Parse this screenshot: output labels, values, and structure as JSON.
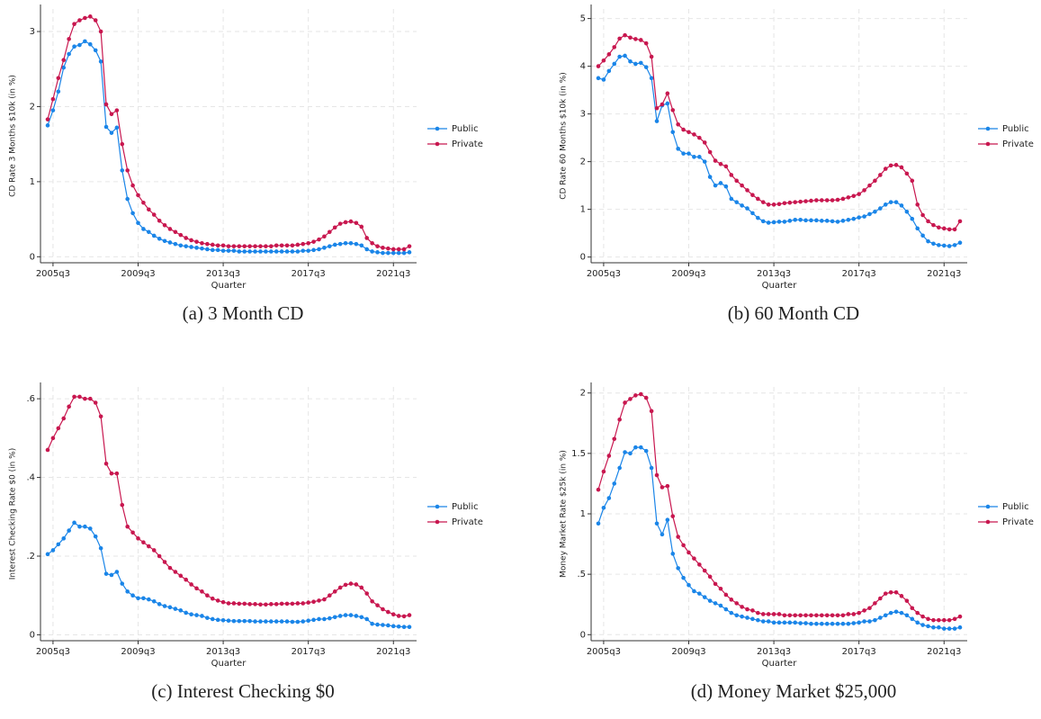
{
  "chart_data": [
    {
      "type": "line",
      "caption": "(a) 3 Month CD",
      "ylabel": "CD Rate 3 Months $10k (in %)",
      "xlabel": "Quarter",
      "x": [
        "2005q2",
        "2005q3",
        "2005q4",
        "2006q1",
        "2006q2",
        "2006q3",
        "2006q4",
        "2007q1",
        "2007q2",
        "2007q3",
        "2007q4",
        "2008q1",
        "2008q2",
        "2008q3",
        "2008q4",
        "2009q1",
        "2009q2",
        "2009q3",
        "2009q4",
        "2010q1",
        "2010q2",
        "2010q3",
        "2010q4",
        "2011q1",
        "2011q2",
        "2011q3",
        "2011q4",
        "2012q1",
        "2012q2",
        "2012q3",
        "2012q4",
        "2013q1",
        "2013q2",
        "2013q3",
        "2013q4",
        "2014q1",
        "2014q2",
        "2014q3",
        "2014q4",
        "2015q1",
        "2015q2",
        "2015q3",
        "2015q4",
        "2016q1",
        "2016q2",
        "2016q3",
        "2016q4",
        "2017q1",
        "2017q2",
        "2017q3",
        "2017q4",
        "2018q1",
        "2018q2",
        "2018q3",
        "2018q4",
        "2019q1",
        "2019q2",
        "2019q3",
        "2019q4",
        "2020q1",
        "2020q2",
        "2020q3",
        "2020q4",
        "2021q1",
        "2021q2",
        "2021q3",
        "2021q4",
        "2022q1",
        "2022q2"
      ],
      "xticks": [
        "2005q3",
        "2009q3",
        "2013q3",
        "2017q3",
        "2021q3"
      ],
      "ylim": [
        -0.08,
        3.3
      ],
      "yticks": [
        0,
        1,
        2,
        3
      ],
      "grid": true,
      "series": [
        {
          "name": "Public",
          "color": "#1a85e8",
          "values": [
            1.75,
            1.95,
            2.2,
            2.52,
            2.7,
            2.8,
            2.82,
            2.87,
            2.83,
            2.75,
            2.6,
            1.73,
            1.65,
            1.72,
            1.15,
            0.77,
            0.58,
            0.45,
            0.37,
            0.33,
            0.28,
            0.24,
            0.21,
            0.19,
            0.17,
            0.15,
            0.14,
            0.13,
            0.12,
            0.11,
            0.1,
            0.09,
            0.09,
            0.08,
            0.08,
            0.08,
            0.07,
            0.07,
            0.07,
            0.07,
            0.07,
            0.07,
            0.07,
            0.07,
            0.07,
            0.07,
            0.07,
            0.07,
            0.08,
            0.08,
            0.09,
            0.1,
            0.12,
            0.14,
            0.16,
            0.17,
            0.18,
            0.18,
            0.17,
            0.15,
            0.1,
            0.07,
            0.06,
            0.05,
            0.05,
            0.05,
            0.05,
            0.05,
            0.06
          ]
        },
        {
          "name": "Private",
          "color": "#c8174f",
          "values": [
            1.83,
            2.1,
            2.38,
            2.62,
            2.9,
            3.1,
            3.15,
            3.18,
            3.2,
            3.15,
            3.0,
            2.03,
            1.9,
            1.95,
            1.5,
            1.15,
            0.95,
            0.82,
            0.72,
            0.63,
            0.56,
            0.48,
            0.42,
            0.37,
            0.33,
            0.29,
            0.25,
            0.22,
            0.2,
            0.18,
            0.17,
            0.16,
            0.15,
            0.15,
            0.14,
            0.14,
            0.14,
            0.14,
            0.14,
            0.14,
            0.14,
            0.14,
            0.14,
            0.15,
            0.15,
            0.15,
            0.15,
            0.16,
            0.17,
            0.18,
            0.2,
            0.23,
            0.27,
            0.33,
            0.39,
            0.44,
            0.46,
            0.47,
            0.45,
            0.4,
            0.25,
            0.18,
            0.14,
            0.12,
            0.11,
            0.1,
            0.1,
            0.1,
            0.14
          ]
        }
      ]
    },
    {
      "type": "line",
      "caption": "(b) 60 Month CD",
      "ylabel": "CD Rate 60 Months $10k (in %)",
      "xlabel": "Quarter",
      "x": [
        "2005q2",
        "2005q3",
        "2005q4",
        "2006q1",
        "2006q2",
        "2006q3",
        "2006q4",
        "2007q1",
        "2007q2",
        "2007q3",
        "2007q4",
        "2008q1",
        "2008q2",
        "2008q3",
        "2008q4",
        "2009q1",
        "2009q2",
        "2009q3",
        "2009q4",
        "2010q1",
        "2010q2",
        "2010q3",
        "2010q4",
        "2011q1",
        "2011q2",
        "2011q3",
        "2011q4",
        "2012q1",
        "2012q2",
        "2012q3",
        "2012q4",
        "2013q1",
        "2013q2",
        "2013q3",
        "2013q4",
        "2014q1",
        "2014q2",
        "2014q3",
        "2014q4",
        "2015q1",
        "2015q2",
        "2015q3",
        "2015q4",
        "2016q1",
        "2016q2",
        "2016q3",
        "2016q4",
        "2017q1",
        "2017q2",
        "2017q3",
        "2017q4",
        "2018q1",
        "2018q2",
        "2018q3",
        "2018q4",
        "2019q1",
        "2019q2",
        "2019q3",
        "2019q4",
        "2020q1",
        "2020q2",
        "2020q3",
        "2020q4",
        "2021q1",
        "2021q2",
        "2021q3",
        "2021q4",
        "2022q1",
        "2022q2"
      ],
      "xticks": [
        "2005q3",
        "2009q3",
        "2013q3",
        "2017q3",
        "2021q3"
      ],
      "ylim": [
        -0.12,
        5.2
      ],
      "yticks": [
        0,
        1,
        2,
        3,
        4,
        5
      ],
      "grid": true,
      "series": [
        {
          "name": "Public",
          "color": "#1a85e8",
          "values": [
            3.75,
            3.72,
            3.9,
            4.05,
            4.2,
            4.22,
            4.1,
            4.05,
            4.07,
            3.98,
            3.75,
            2.85,
            3.18,
            3.22,
            2.62,
            2.27,
            2.17,
            2.17,
            2.1,
            2.1,
            2.0,
            1.68,
            1.5,
            1.55,
            1.48,
            1.22,
            1.15,
            1.08,
            1.02,
            0.92,
            0.82,
            0.75,
            0.72,
            0.73,
            0.74,
            0.74,
            0.76,
            0.78,
            0.78,
            0.77,
            0.77,
            0.77,
            0.76,
            0.76,
            0.75,
            0.74,
            0.76,
            0.78,
            0.8,
            0.83,
            0.85,
            0.9,
            0.95,
            1.02,
            1.1,
            1.15,
            1.15,
            1.08,
            0.95,
            0.8,
            0.6,
            0.45,
            0.33,
            0.28,
            0.25,
            0.24,
            0.23,
            0.25,
            0.3
          ]
        },
        {
          "name": "Private",
          "color": "#c8174f",
          "values": [
            4.0,
            4.12,
            4.25,
            4.4,
            4.58,
            4.65,
            4.6,
            4.57,
            4.55,
            4.48,
            4.2,
            3.12,
            3.2,
            3.43,
            3.08,
            2.78,
            2.67,
            2.62,
            2.57,
            2.5,
            2.4,
            2.2,
            2.02,
            1.95,
            1.9,
            1.72,
            1.6,
            1.5,
            1.4,
            1.3,
            1.22,
            1.15,
            1.1,
            1.1,
            1.11,
            1.13,
            1.14,
            1.15,
            1.16,
            1.17,
            1.18,
            1.19,
            1.19,
            1.19,
            1.19,
            1.2,
            1.22,
            1.25,
            1.28,
            1.32,
            1.4,
            1.5,
            1.6,
            1.72,
            1.85,
            1.92,
            1.93,
            1.88,
            1.75,
            1.6,
            1.1,
            0.88,
            0.75,
            0.67,
            0.62,
            0.6,
            0.58,
            0.58,
            0.75
          ]
        }
      ]
    },
    {
      "type": "line",
      "caption": "(c) Interest Checking $0",
      "ylabel": "Interest Checking Rate $0 (in %)",
      "xlabel": "Quarter",
      "x": [
        "2005q2",
        "2005q3",
        "2005q4",
        "2006q1",
        "2006q2",
        "2006q3",
        "2006q4",
        "2007q1",
        "2007q2",
        "2007q3",
        "2007q4",
        "2008q1",
        "2008q2",
        "2008q3",
        "2008q4",
        "2009q1",
        "2009q2",
        "2009q3",
        "2009q4",
        "2010q1",
        "2010q2",
        "2010q3",
        "2010q4",
        "2011q1",
        "2011q2",
        "2011q3",
        "2011q4",
        "2012q1",
        "2012q2",
        "2012q3",
        "2012q4",
        "2013q1",
        "2013q2",
        "2013q3",
        "2013q4",
        "2014q1",
        "2014q2",
        "2014q3",
        "2014q4",
        "2015q1",
        "2015q2",
        "2015q3",
        "2015q4",
        "2016q1",
        "2016q2",
        "2016q3",
        "2016q4",
        "2017q1",
        "2017q2",
        "2017q3",
        "2017q4",
        "2018q1",
        "2018q2",
        "2018q3",
        "2018q4",
        "2019q1",
        "2019q2",
        "2019q3",
        "2019q4",
        "2020q1",
        "2020q2",
        "2020q3",
        "2020q4",
        "2021q1",
        "2021q2",
        "2021q3",
        "2021q4",
        "2022q1",
        "2022q2"
      ],
      "xticks": [
        "2005q3",
        "2009q3",
        "2013q3",
        "2017q3",
        "2021q3"
      ],
      "ylim": [
        -0.015,
        0.63
      ],
      "yticks": [
        0,
        {
          "value": 0.2,
          "label": ".2"
        },
        {
          "value": 0.4,
          "label": ".4"
        },
        {
          "value": 0.6,
          "label": ".6"
        }
      ],
      "grid": true,
      "series": [
        {
          "name": "Public",
          "color": "#1a85e8",
          "values": [
            0.205,
            0.215,
            0.23,
            0.245,
            0.265,
            0.285,
            0.275,
            0.275,
            0.27,
            0.25,
            0.22,
            0.155,
            0.152,
            0.16,
            0.13,
            0.11,
            0.1,
            0.093,
            0.093,
            0.09,
            0.085,
            0.078,
            0.073,
            0.07,
            0.066,
            0.062,
            0.056,
            0.052,
            0.05,
            0.048,
            0.043,
            0.04,
            0.038,
            0.037,
            0.036,
            0.035,
            0.035,
            0.035,
            0.035,
            0.034,
            0.034,
            0.034,
            0.034,
            0.034,
            0.034,
            0.034,
            0.033,
            0.033,
            0.034,
            0.036,
            0.038,
            0.04,
            0.04,
            0.042,
            0.045,
            0.048,
            0.05,
            0.05,
            0.048,
            0.045,
            0.04,
            0.028,
            0.026,
            0.025,
            0.024,
            0.022,
            0.021,
            0.02,
            0.02
          ]
        },
        {
          "name": "Private",
          "color": "#c8174f",
          "values": [
            0.47,
            0.5,
            0.525,
            0.55,
            0.58,
            0.605,
            0.605,
            0.6,
            0.6,
            0.59,
            0.555,
            0.435,
            0.41,
            0.41,
            0.33,
            0.275,
            0.26,
            0.245,
            0.235,
            0.225,
            0.215,
            0.2,
            0.185,
            0.17,
            0.16,
            0.15,
            0.14,
            0.128,
            0.118,
            0.11,
            0.1,
            0.092,
            0.087,
            0.083,
            0.08,
            0.08,
            0.079,
            0.079,
            0.078,
            0.078,
            0.077,
            0.077,
            0.078,
            0.078,
            0.079,
            0.079,
            0.079,
            0.08,
            0.08,
            0.082,
            0.084,
            0.087,
            0.09,
            0.1,
            0.11,
            0.12,
            0.127,
            0.13,
            0.128,
            0.12,
            0.105,
            0.085,
            0.075,
            0.065,
            0.058,
            0.052,
            0.048,
            0.047,
            0.05
          ]
        }
      ]
    },
    {
      "type": "line",
      "caption": "(d) Money Market $25,000",
      "ylabel": "Money Market Rate $25k (in %)",
      "xlabel": "Quarter",
      "x": [
        "2005q2",
        "2005q3",
        "2005q4",
        "2006q1",
        "2006q2",
        "2006q3",
        "2006q4",
        "2007q1",
        "2007q2",
        "2007q3",
        "2007q4",
        "2008q1",
        "2008q2",
        "2008q3",
        "2008q4",
        "2009q1",
        "2009q2",
        "2009q3",
        "2009q4",
        "2010q1",
        "2010q2",
        "2010q3",
        "2010q4",
        "2011q1",
        "2011q2",
        "2011q3",
        "2011q4",
        "2012q1",
        "2012q2",
        "2012q3",
        "2012q4",
        "2013q1",
        "2013q2",
        "2013q3",
        "2013q4",
        "2014q1",
        "2014q2",
        "2014q3",
        "2014q4",
        "2015q1",
        "2015q2",
        "2015q3",
        "2015q4",
        "2016q1",
        "2016q2",
        "2016q3",
        "2016q4",
        "2017q1",
        "2017q2",
        "2017q3",
        "2017q4",
        "2018q1",
        "2018q2",
        "2018q3",
        "2018q4",
        "2019q1",
        "2019q2",
        "2019q3",
        "2019q4",
        "2020q1",
        "2020q2",
        "2020q3",
        "2020q4",
        "2021q1",
        "2021q2",
        "2021q3",
        "2021q4",
        "2022q1",
        "2022q2"
      ],
      "xticks": [
        "2005q3",
        "2009q3",
        "2013q3",
        "2017q3",
        "2021q3"
      ],
      "ylim": [
        -0.05,
        2.05
      ],
      "yticks": [
        0,
        {
          "value": 0.5,
          "label": ".5"
        },
        1,
        1.5,
        2
      ],
      "grid": true,
      "series": [
        {
          "name": "Public",
          "color": "#1a85e8",
          "values": [
            0.92,
            1.05,
            1.13,
            1.25,
            1.38,
            1.51,
            1.5,
            1.55,
            1.55,
            1.52,
            1.38,
            0.92,
            0.83,
            0.95,
            0.67,
            0.55,
            0.47,
            0.41,
            0.36,
            0.34,
            0.31,
            0.28,
            0.26,
            0.24,
            0.21,
            0.18,
            0.16,
            0.15,
            0.14,
            0.13,
            0.12,
            0.11,
            0.11,
            0.1,
            0.1,
            0.1,
            0.1,
            0.1,
            0.095,
            0.095,
            0.09,
            0.09,
            0.09,
            0.09,
            0.09,
            0.09,
            0.09,
            0.09,
            0.095,
            0.1,
            0.11,
            0.11,
            0.12,
            0.14,
            0.16,
            0.18,
            0.19,
            0.18,
            0.16,
            0.13,
            0.1,
            0.08,
            0.07,
            0.06,
            0.06,
            0.05,
            0.05,
            0.05,
            0.06
          ]
        },
        {
          "name": "Private",
          "color": "#c8174f",
          "values": [
            1.2,
            1.35,
            1.48,
            1.62,
            1.78,
            1.92,
            1.95,
            1.98,
            1.99,
            1.96,
            1.85,
            1.32,
            1.22,
            1.23,
            0.98,
            0.81,
            0.74,
            0.68,
            0.63,
            0.58,
            0.53,
            0.48,
            0.42,
            0.38,
            0.33,
            0.29,
            0.26,
            0.23,
            0.21,
            0.2,
            0.18,
            0.17,
            0.17,
            0.17,
            0.17,
            0.16,
            0.16,
            0.16,
            0.16,
            0.16,
            0.16,
            0.16,
            0.16,
            0.16,
            0.16,
            0.16,
            0.16,
            0.17,
            0.17,
            0.18,
            0.2,
            0.22,
            0.26,
            0.3,
            0.34,
            0.35,
            0.35,
            0.32,
            0.28,
            0.22,
            0.18,
            0.15,
            0.13,
            0.12,
            0.12,
            0.12,
            0.12,
            0.13,
            0.15
          ]
        }
      ]
    }
  ]
}
